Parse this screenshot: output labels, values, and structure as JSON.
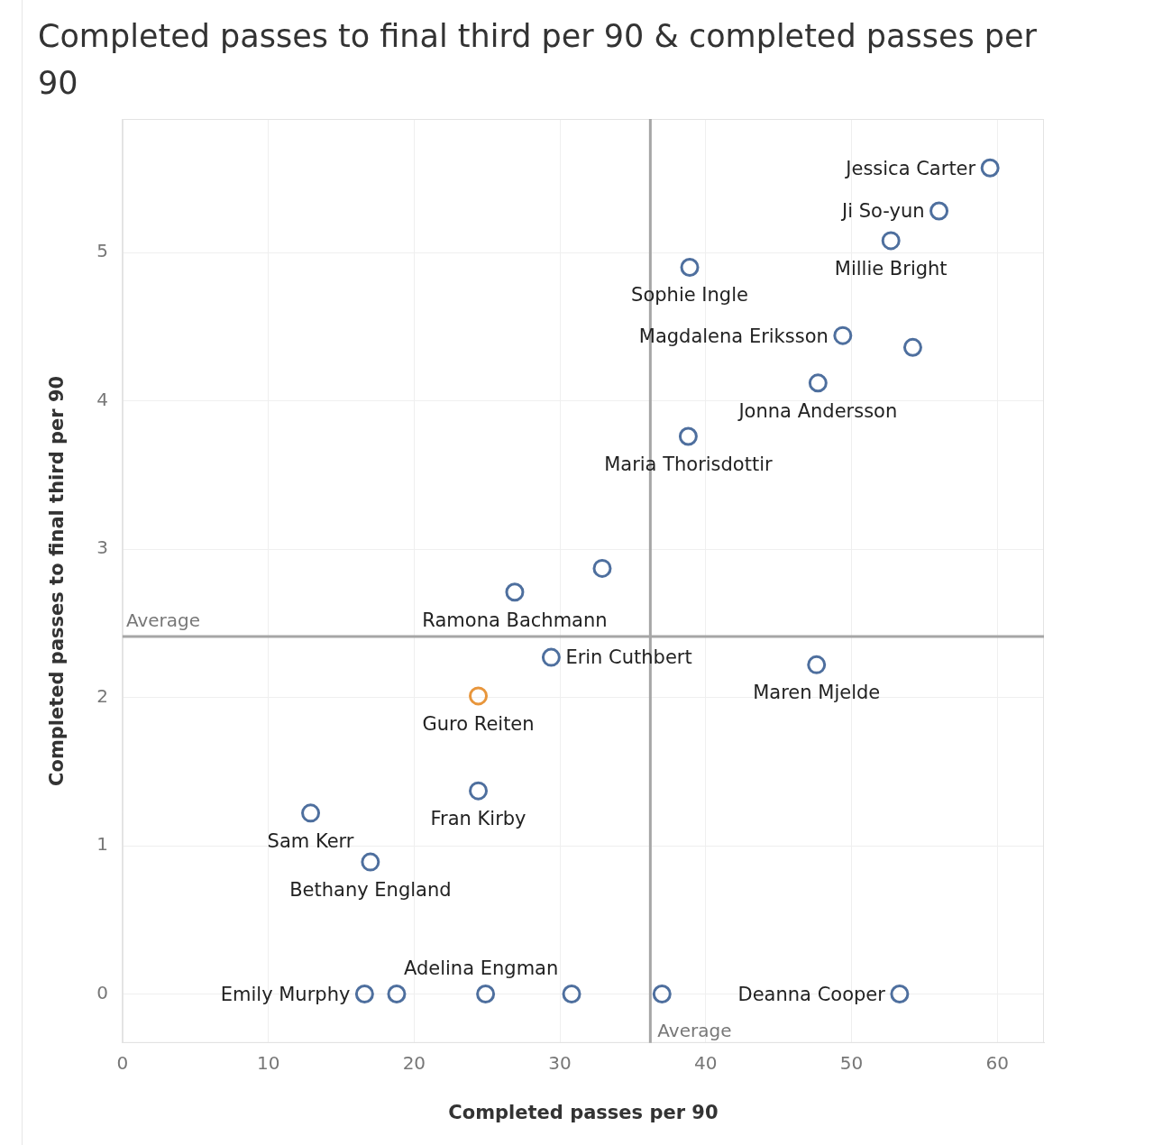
{
  "chart_data": {
    "type": "scatter",
    "title": "Completed passes to final third per 90 & completed passes per 90",
    "x_label": "Completed passes per 90",
    "y_label": "Completed passes to final third per 90",
    "labels": [
      "Jessica Carter",
      "Ji So-yun",
      "Millie Bright",
      "Sophie Ingle",
      "Magdalena Eriksson",
      null,
      "Jonna Andersson",
      "Maria Thorisdottir",
      null,
      "Ramona Bachmann",
      "Erin Cuthbert",
      "Maren Mjelde",
      "Guro Reiten",
      "Fran Kirby",
      "Sam Kerr",
      "Bethany England",
      "Emily Murphy",
      null,
      "Adelina Engman",
      null,
      null,
      "Deanna Cooper"
    ],
    "x": [
      59.5,
      56.0,
      52.7,
      38.9,
      49.4,
      54.2,
      47.7,
      38.8,
      32.9,
      26.9,
      29.4,
      47.6,
      24.4,
      24.4,
      12.9,
      17.0,
      16.6,
      18.8,
      24.9,
      30.8,
      37.0,
      53.3
    ],
    "y": [
      5.57,
      5.28,
      5.08,
      4.9,
      4.44,
      4.36,
      4.12,
      3.76,
      2.87,
      2.71,
      2.27,
      2.22,
      2.01,
      1.37,
      1.22,
      0.89,
      0,
      0,
      0,
      0,
      0,
      0
    ],
    "colors": [
      "#4e6f9e",
      "#4e6f9e",
      "#4e6f9e",
      "#4e6f9e",
      "#4e6f9e",
      "#4e6f9e",
      "#4e6f9e",
      "#4e6f9e",
      "#4e6f9e",
      "#4e6f9e",
      "#4e6f9e",
      "#4e6f9e",
      "#e8963c",
      "#4e6f9e",
      "#4e6f9e",
      "#4e6f9e",
      "#4e6f9e",
      "#4e6f9e",
      "#4e6f9e",
      "#4e6f9e",
      "#4e6f9e",
      "#4e6f9e"
    ],
    "marker": "circle",
    "xlim": [
      0,
      63.2
    ],
    "ylim": [
      -0.33,
      5.9
    ],
    "xticks": [
      0,
      10,
      20,
      30,
      40,
      50,
      60
    ],
    "yticks": [
      0,
      1,
      2,
      3,
      4,
      5
    ],
    "grid": true,
    "reference_lines": [
      {
        "axis": "x",
        "value": 36.2,
        "label": "Average"
      },
      {
        "axis": "y",
        "value": 2.41,
        "label": "Average"
      }
    ]
  }
}
